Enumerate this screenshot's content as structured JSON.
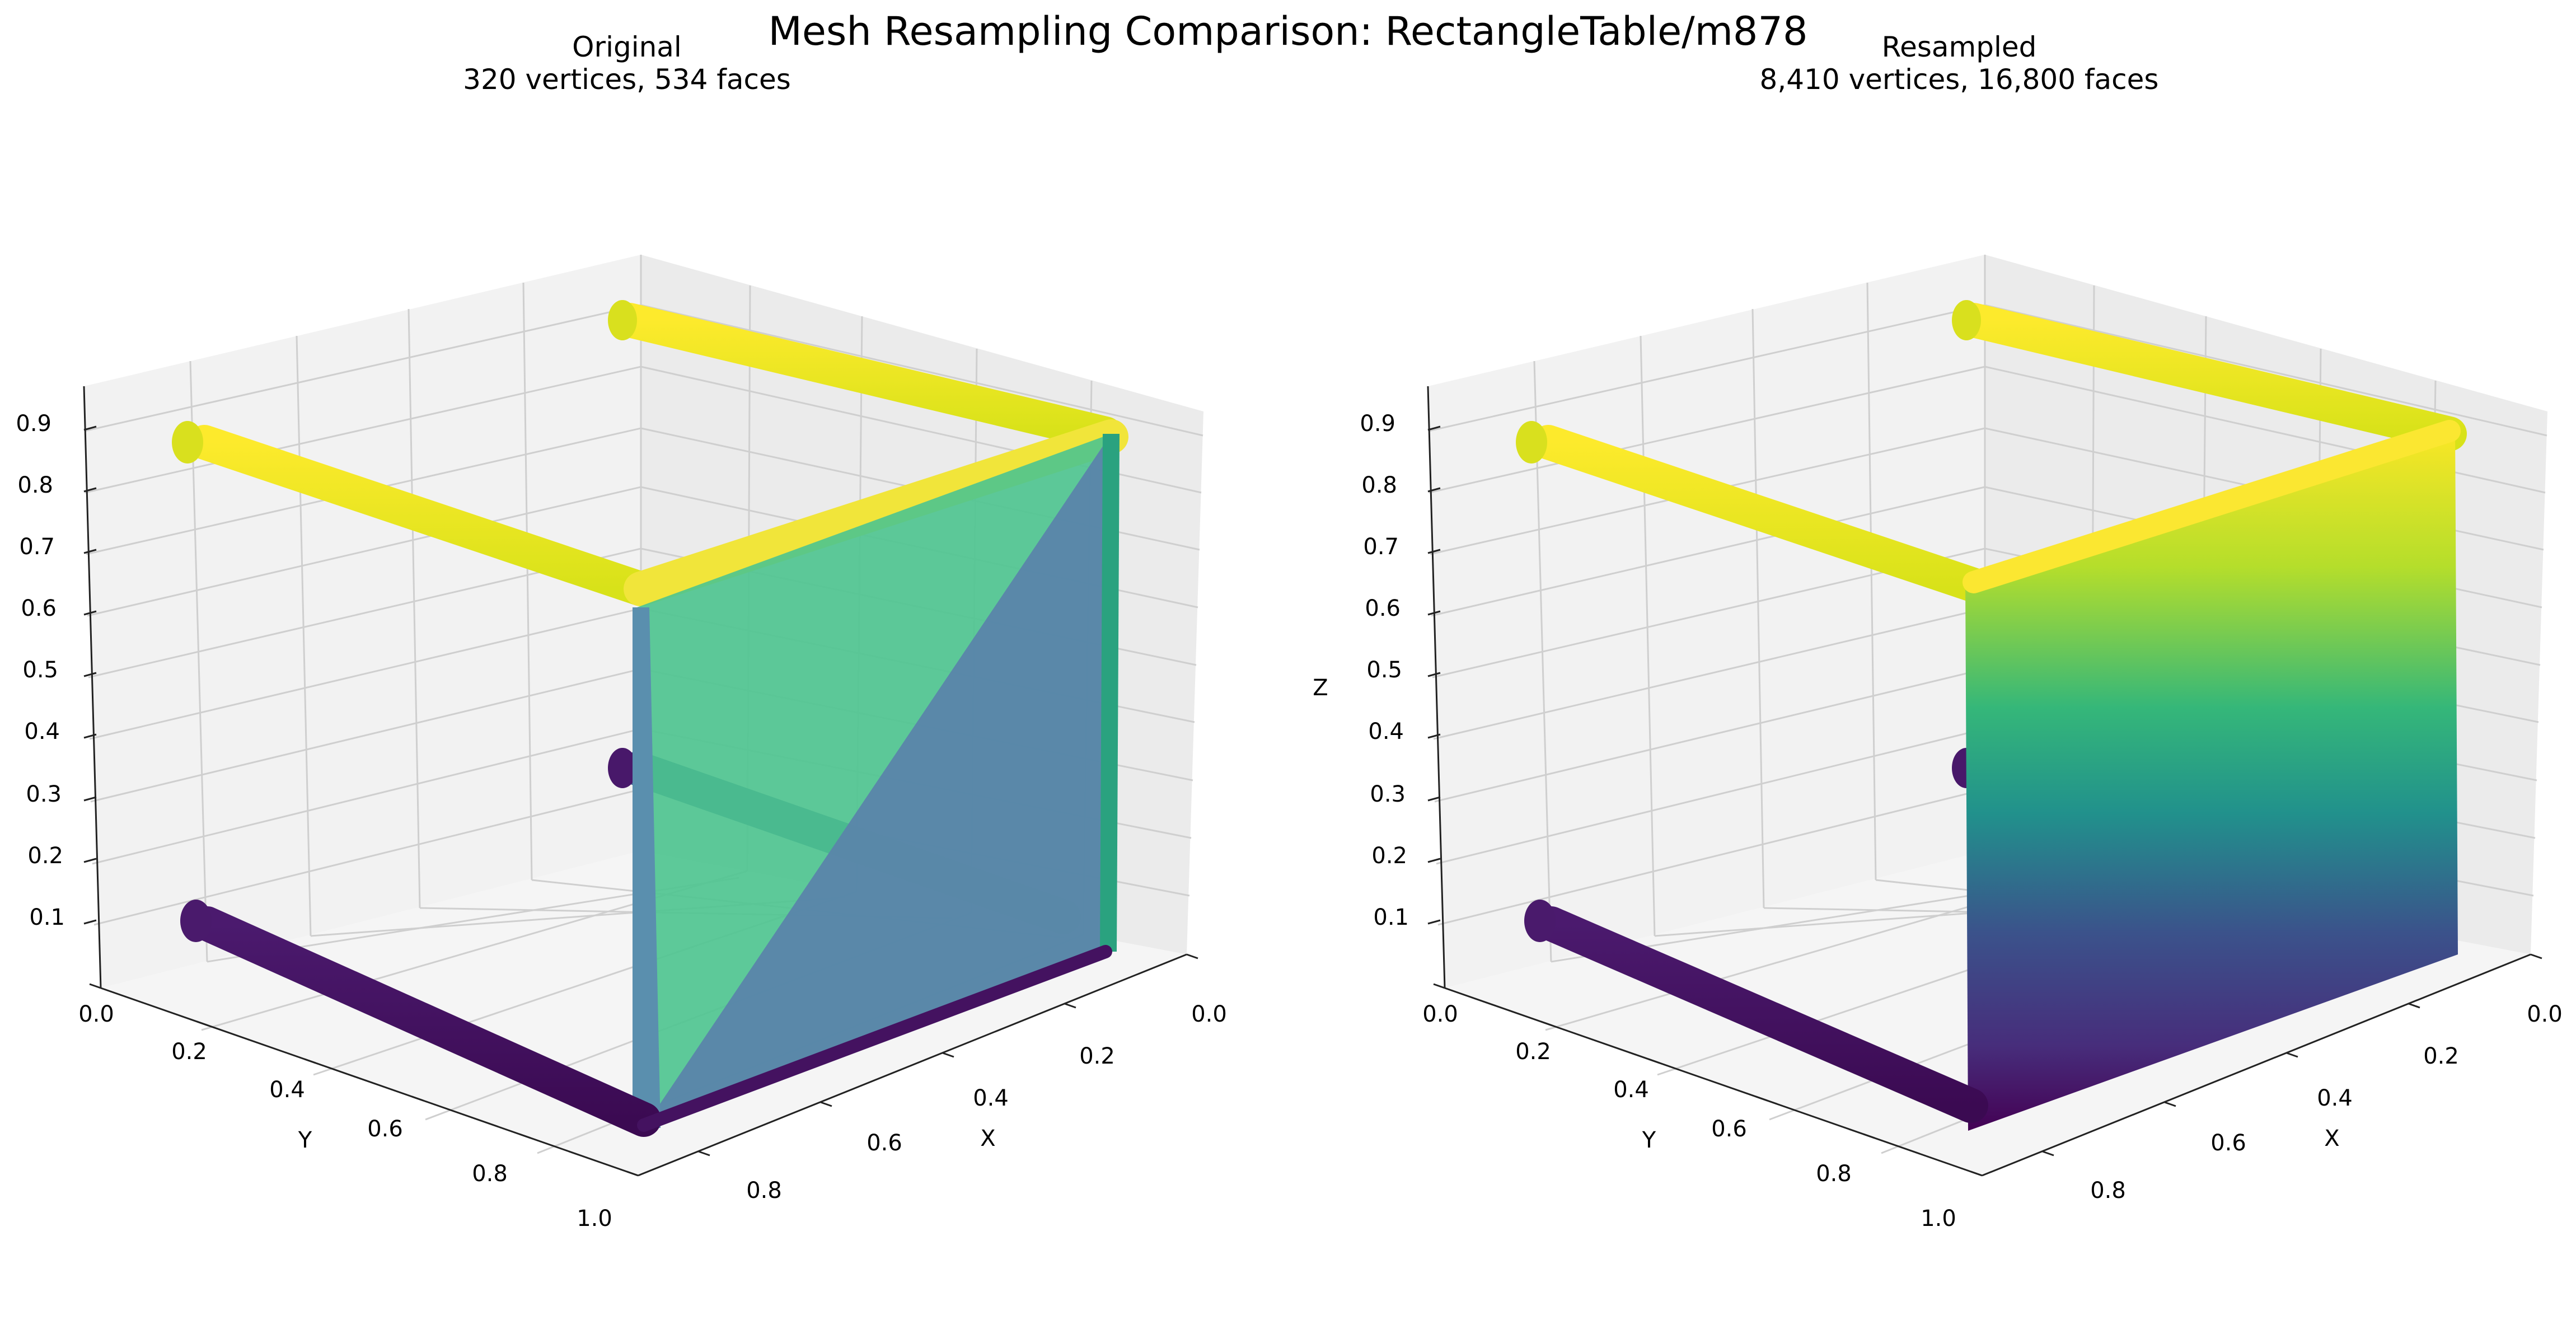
{
  "title": "Mesh Resampling Comparison: RectangleTable/m878",
  "chart_data": [
    {
      "type": "3d-mesh",
      "title": "Original",
      "subtitle": "320 vertices, 534 faces",
      "vertices": 320,
      "faces": 534,
      "xlabel": "X",
      "ylabel": "Y",
      "zlabel": "",
      "xticks": [
        "0.0",
        "0.2",
        "0.4",
        "0.6",
        "0.8"
      ],
      "yticks": [
        "0.0",
        "0.2",
        "0.4",
        "0.6",
        "0.8",
        "1.0"
      ],
      "zticks": [
        "0.1",
        "0.2",
        "0.3",
        "0.4",
        "0.5",
        "0.6",
        "0.7",
        "0.8",
        "0.9"
      ],
      "xlim": [
        0.0,
        0.9
      ],
      "ylim": [
        0.0,
        1.0
      ],
      "zlim": [
        0.02,
        0.92
      ],
      "colormap": "viridis",
      "colors": {
        "low": "#440154",
        "mid": "#21918c",
        "high": "#fde725",
        "panel": "#5b8fb0",
        "panel_face": "#4fc48c"
      }
    },
    {
      "type": "3d-mesh",
      "title": "Resampled",
      "subtitle": "8,410 vertices, 16,800 faces",
      "vertices": 8410,
      "faces": 16800,
      "xlabel": "X",
      "ylabel": "Y",
      "zlabel": "Z",
      "xticks": [
        "0.0",
        "0.2",
        "0.4",
        "0.6",
        "0.8"
      ],
      "yticks": [
        "0.0",
        "0.2",
        "0.4",
        "0.6",
        "0.8",
        "1.0"
      ],
      "zticks": [
        "0.1",
        "0.2",
        "0.3",
        "0.4",
        "0.5",
        "0.6",
        "0.7",
        "0.8",
        "0.9"
      ],
      "xlim": [
        0.0,
        0.9
      ],
      "ylim": [
        0.0,
        1.0
      ],
      "zlim": [
        0.02,
        0.92
      ],
      "colormap": "viridis",
      "colors": {
        "low": "#440154",
        "mid": "#21918c",
        "high": "#fde725"
      }
    }
  ]
}
